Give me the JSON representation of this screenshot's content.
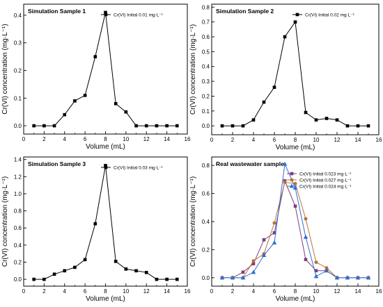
{
  "chart_data": [
    {
      "type": "line",
      "title": "Simulation Sample 1",
      "xlabel": "Volume (mL)",
      "ylabel": "Cr(VI) concentration (mg·L⁻¹)",
      "xlim": [
        0,
        16
      ],
      "ylim": [
        -0.03,
        0.44
      ],
      "xticks": [
        0,
        2,
        4,
        6,
        8,
        10,
        12,
        14,
        16
      ],
      "yticks": [
        0.0,
        0.1,
        0.2,
        0.3,
        0.4
      ],
      "ytick_labels": [
        "0.0",
        "0.1",
        "0.2",
        "0.3",
        "0.4"
      ],
      "legend_position": "top-right",
      "grid": false,
      "series": [
        {
          "name": "Cr(VI) Initial 0.01 mg·L⁻¹",
          "color": "#000000",
          "marker": "square",
          "x": [
            1,
            2,
            3,
            4,
            5,
            6,
            7,
            8,
            9,
            10,
            11,
            12,
            13,
            14,
            15
          ],
          "y": [
            0,
            0,
            0,
            0.04,
            0.09,
            0.11,
            0.25,
            0.41,
            0.08,
            0.05,
            0,
            0,
            0,
            0,
            0
          ]
        }
      ]
    },
    {
      "type": "line",
      "title": "Simulation Sample 2",
      "xlabel": "Volume (mL)",
      "ylabel": "Cr(VI) concentration (mg·L⁻¹)",
      "xlim": [
        0,
        16
      ],
      "ylim": [
        -0.06,
        0.82
      ],
      "xticks": [
        0,
        2,
        4,
        6,
        8,
        10,
        12,
        14,
        16
      ],
      "yticks": [
        0.0,
        0.1,
        0.2,
        0.3,
        0.4,
        0.5,
        0.6,
        0.7,
        0.8
      ],
      "ytick_labels": [
        "0.0",
        "0.1",
        "0.2",
        "0.3",
        "0.4",
        "0.5",
        "0.6",
        "0.7",
        "0.8"
      ],
      "legend_position": "top-right",
      "grid": false,
      "series": [
        {
          "name": "Cr(VI) Initial 0.02 mg·L⁻¹",
          "color": "#000000",
          "marker": "square",
          "x": [
            1,
            2,
            3,
            4,
            5,
            6,
            7,
            8,
            9,
            10,
            11,
            12,
            13,
            14,
            15
          ],
          "y": [
            0,
            0,
            0,
            0.04,
            0.16,
            0.26,
            0.6,
            0.7,
            0.09,
            0.04,
            0.05,
            0.04,
            0,
            0,
            0
          ]
        }
      ]
    },
    {
      "type": "line",
      "title": "Simulation Sample 3",
      "xlabel": "Volume (mL)",
      "ylabel": "Cr(VI) concentration (mg·L⁻¹)",
      "xlim": [
        0,
        16
      ],
      "ylim": [
        -0.08,
        1.43
      ],
      "xticks": [
        0,
        2,
        4,
        6,
        8,
        10,
        12,
        14,
        16
      ],
      "yticks": [
        0.0,
        0.2,
        0.4,
        0.6,
        0.8,
        1.0,
        1.2,
        1.4
      ],
      "ytick_labels": [
        "0.0",
        "0.2",
        "0.4",
        "0.6",
        "0.8",
        "1.0",
        "1.2",
        "1.4"
      ],
      "legend_position": "top-right",
      "grid": false,
      "series": [
        {
          "name": "Cr(VI) Initial 0.03 mg·L⁻¹",
          "color": "#000000",
          "marker": "square",
          "x": [
            1,
            2,
            3,
            4,
            5,
            6,
            7,
            8,
            9,
            10,
            11,
            12,
            13,
            14,
            15
          ],
          "y": [
            0,
            0,
            0.06,
            0.1,
            0.14,
            0.23,
            0.65,
            1.33,
            0.21,
            0.12,
            0.1,
            0.08,
            0,
            0,
            0
          ]
        }
      ]
    },
    {
      "type": "line",
      "title": "Real wastewater sample",
      "xlabel": "Volume (mL)",
      "ylabel": "Cr(VI) concentration (mg·L⁻¹)",
      "xlim": [
        0,
        16
      ],
      "ylim": [
        -0.06,
        0.86
      ],
      "xticks": [
        0,
        2,
        4,
        6,
        8,
        10,
        12,
        14,
        16
      ],
      "yticks": [
        0.0,
        0.2,
        0.4,
        0.6,
        0.8
      ],
      "ytick_labels": [
        "0.0",
        "0.2",
        "0.4",
        "0.6",
        "0.8"
      ],
      "legend_position": "top-right",
      "grid": false,
      "series": [
        {
          "name": "Cr(VI) Initial 0.023 mg·L⁻¹",
          "color": "#7b3f7b",
          "marker": "square",
          "x": [
            1,
            2,
            3,
            4,
            5,
            6,
            7,
            8,
            9,
            10,
            11,
            12,
            13,
            14,
            15
          ],
          "y": [
            0,
            0,
            0.04,
            0.1,
            0.27,
            0.32,
            0.69,
            0.51,
            0.13,
            0.05,
            0.05,
            0,
            0,
            0,
            0
          ]
        },
        {
          "name": "Cr(VI) Initial 0.027 mg·L⁻¹",
          "color": "#b87333",
          "marker": "circle",
          "x": [
            1,
            2,
            3,
            4,
            5,
            6,
            7,
            8,
            9,
            10,
            11,
            12,
            13,
            14,
            15
          ],
          "y": [
            0,
            0,
            0,
            0.12,
            0.17,
            0.39,
            0.68,
            0.67,
            0.42,
            0.11,
            0.07,
            0,
            0,
            0,
            0
          ]
        },
        {
          "name": "Cr(VI) Initial 0.024 mg·L⁻¹",
          "color": "#2f6fd6",
          "marker": "triangle",
          "x": [
            1,
            2,
            3,
            4,
            5,
            6,
            7,
            8,
            9,
            10,
            11,
            12,
            13,
            14,
            15
          ],
          "y": [
            0,
            0,
            0,
            0.04,
            0.16,
            0.25,
            0.81,
            0.64,
            0.29,
            0.01,
            0.05,
            0,
            0,
            0,
            0
          ]
        }
      ]
    }
  ]
}
